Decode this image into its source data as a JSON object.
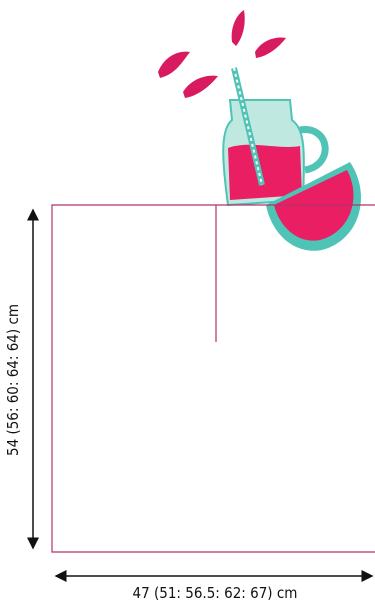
{
  "dimensions": {
    "height": "54 (56: 60: 64: 64) cm",
    "width": "47 (51: 56.5: 62: 67) cm"
  }
}
